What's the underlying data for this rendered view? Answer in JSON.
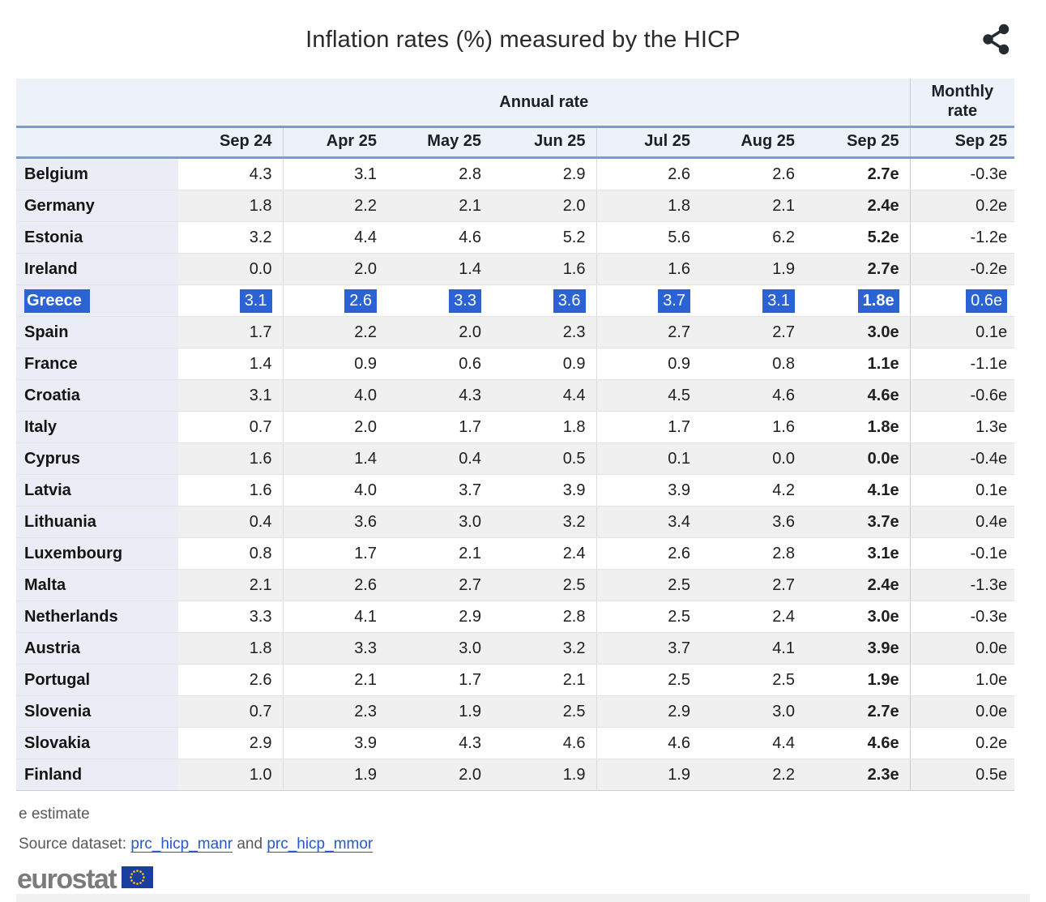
{
  "chart_data": {
    "type": "table",
    "title": "Inflation rates (%) measured by the HICP",
    "column_groups": [
      "Annual rate",
      "Monthly rate"
    ],
    "columns": [
      "Sep 24",
      "Apr 25",
      "May 25",
      "Jun 25",
      "Jul 25",
      "Aug 25",
      "Sep 25",
      "Sep 25"
    ],
    "unit": "percent",
    "rows": [
      {
        "country": "Belgium",
        "annual": [
          "4.3",
          "3.1",
          "2.8",
          "2.9",
          "2.6",
          "2.6",
          "2.7e"
        ],
        "monthly": "-0.3e",
        "selected": false
      },
      {
        "country": "Germany",
        "annual": [
          "1.8",
          "2.2",
          "2.1",
          "2.0",
          "1.8",
          "2.1",
          "2.4e"
        ],
        "monthly": "0.2e",
        "selected": false
      },
      {
        "country": "Estonia",
        "annual": [
          "3.2",
          "4.4",
          "4.6",
          "5.2",
          "5.6",
          "6.2",
          "5.2e"
        ],
        "monthly": "-1.2e",
        "selected": false
      },
      {
        "country": "Ireland",
        "annual": [
          "0.0",
          "2.0",
          "1.4",
          "1.6",
          "1.6",
          "1.9",
          "2.7e"
        ],
        "monthly": "-0.2e",
        "selected": false
      },
      {
        "country": "Greece",
        "annual": [
          "3.1",
          "2.6",
          "3.3",
          "3.6",
          "3.7",
          "3.1",
          "1.8e"
        ],
        "monthly": "0.6e",
        "selected": true
      },
      {
        "country": "Spain",
        "annual": [
          "1.7",
          "2.2",
          "2.0",
          "2.3",
          "2.7",
          "2.7",
          "3.0e"
        ],
        "monthly": "0.1e",
        "selected": false
      },
      {
        "country": "France",
        "annual": [
          "1.4",
          "0.9",
          "0.6",
          "0.9",
          "0.9",
          "0.8",
          "1.1e"
        ],
        "monthly": "-1.1e",
        "selected": false
      },
      {
        "country": "Croatia",
        "annual": [
          "3.1",
          "4.0",
          "4.3",
          "4.4",
          "4.5",
          "4.6",
          "4.6e"
        ],
        "monthly": "-0.6e",
        "selected": false
      },
      {
        "country": "Italy",
        "annual": [
          "0.7",
          "2.0",
          "1.7",
          "1.8",
          "1.7",
          "1.6",
          "1.8e"
        ],
        "monthly": "1.3e",
        "selected": false
      },
      {
        "country": "Cyprus",
        "annual": [
          "1.6",
          "1.4",
          "0.4",
          "0.5",
          "0.1",
          "0.0",
          "0.0e"
        ],
        "monthly": "-0.4e",
        "selected": false
      },
      {
        "country": "Latvia",
        "annual": [
          "1.6",
          "4.0",
          "3.7",
          "3.9",
          "3.9",
          "4.2",
          "4.1e"
        ],
        "monthly": "0.1e",
        "selected": false
      },
      {
        "country": "Lithuania",
        "annual": [
          "0.4",
          "3.6",
          "3.0",
          "3.2",
          "3.4",
          "3.6",
          "3.7e"
        ],
        "monthly": "0.4e",
        "selected": false
      },
      {
        "country": "Luxembourg",
        "annual": [
          "0.8",
          "1.7",
          "2.1",
          "2.4",
          "2.6",
          "2.8",
          "3.1e"
        ],
        "monthly": "-0.1e",
        "selected": false
      },
      {
        "country": "Malta",
        "annual": [
          "2.1",
          "2.6",
          "2.7",
          "2.5",
          "2.5",
          "2.7",
          "2.4e"
        ],
        "monthly": "-1.3e",
        "selected": false
      },
      {
        "country": "Netherlands",
        "annual": [
          "3.3",
          "4.1",
          "2.9",
          "2.8",
          "2.5",
          "2.4",
          "3.0e"
        ],
        "monthly": "-0.3e",
        "selected": false
      },
      {
        "country": "Austria",
        "annual": [
          "1.8",
          "3.3",
          "3.0",
          "3.2",
          "3.7",
          "4.1",
          "3.9e"
        ],
        "monthly": "0.0e",
        "selected": false
      },
      {
        "country": "Portugal",
        "annual": [
          "2.6",
          "2.1",
          "1.7",
          "2.1",
          "2.5",
          "2.5",
          "1.9e"
        ],
        "monthly": "1.0e",
        "selected": false
      },
      {
        "country": "Slovenia",
        "annual": [
          "0.7",
          "2.3",
          "1.9",
          "2.5",
          "2.9",
          "3.0",
          "2.7e"
        ],
        "monthly": "0.0e",
        "selected": false
      },
      {
        "country": "Slovakia",
        "annual": [
          "2.9",
          "3.9",
          "4.3",
          "4.6",
          "4.6",
          "4.4",
          "4.6e"
        ],
        "monthly": "0.2e",
        "selected": false
      },
      {
        "country": "Finland",
        "annual": [
          "1.0",
          "1.9",
          "2.0",
          "1.9",
          "1.9",
          "2.2",
          "2.3e"
        ],
        "monthly": "0.5e",
        "selected": false
      }
    ]
  },
  "header": {
    "share_icon": "share-nodes"
  },
  "footer": {
    "estimate_note": "e estimate",
    "source_prefix": "Source dataset:",
    "source_link_1": "prc_hicp_manr",
    "source_conjunction": "and",
    "source_link_2": "prc_hicp_mmor",
    "logo_text": "eurostat"
  },
  "colors": {
    "selection_blue": "#2b63d4",
    "header_rule_blue": "#7e9ad5",
    "header_background": "#edf1f9",
    "country_cell_background": "#eaedf6",
    "alt_row_background": "#f0f0f0",
    "link_blue": "#2758d0",
    "logo_gray": "#7b7b7b",
    "eu_flag_blue": "#1b3f9e",
    "eu_star_yellow": "#ffcc00"
  }
}
